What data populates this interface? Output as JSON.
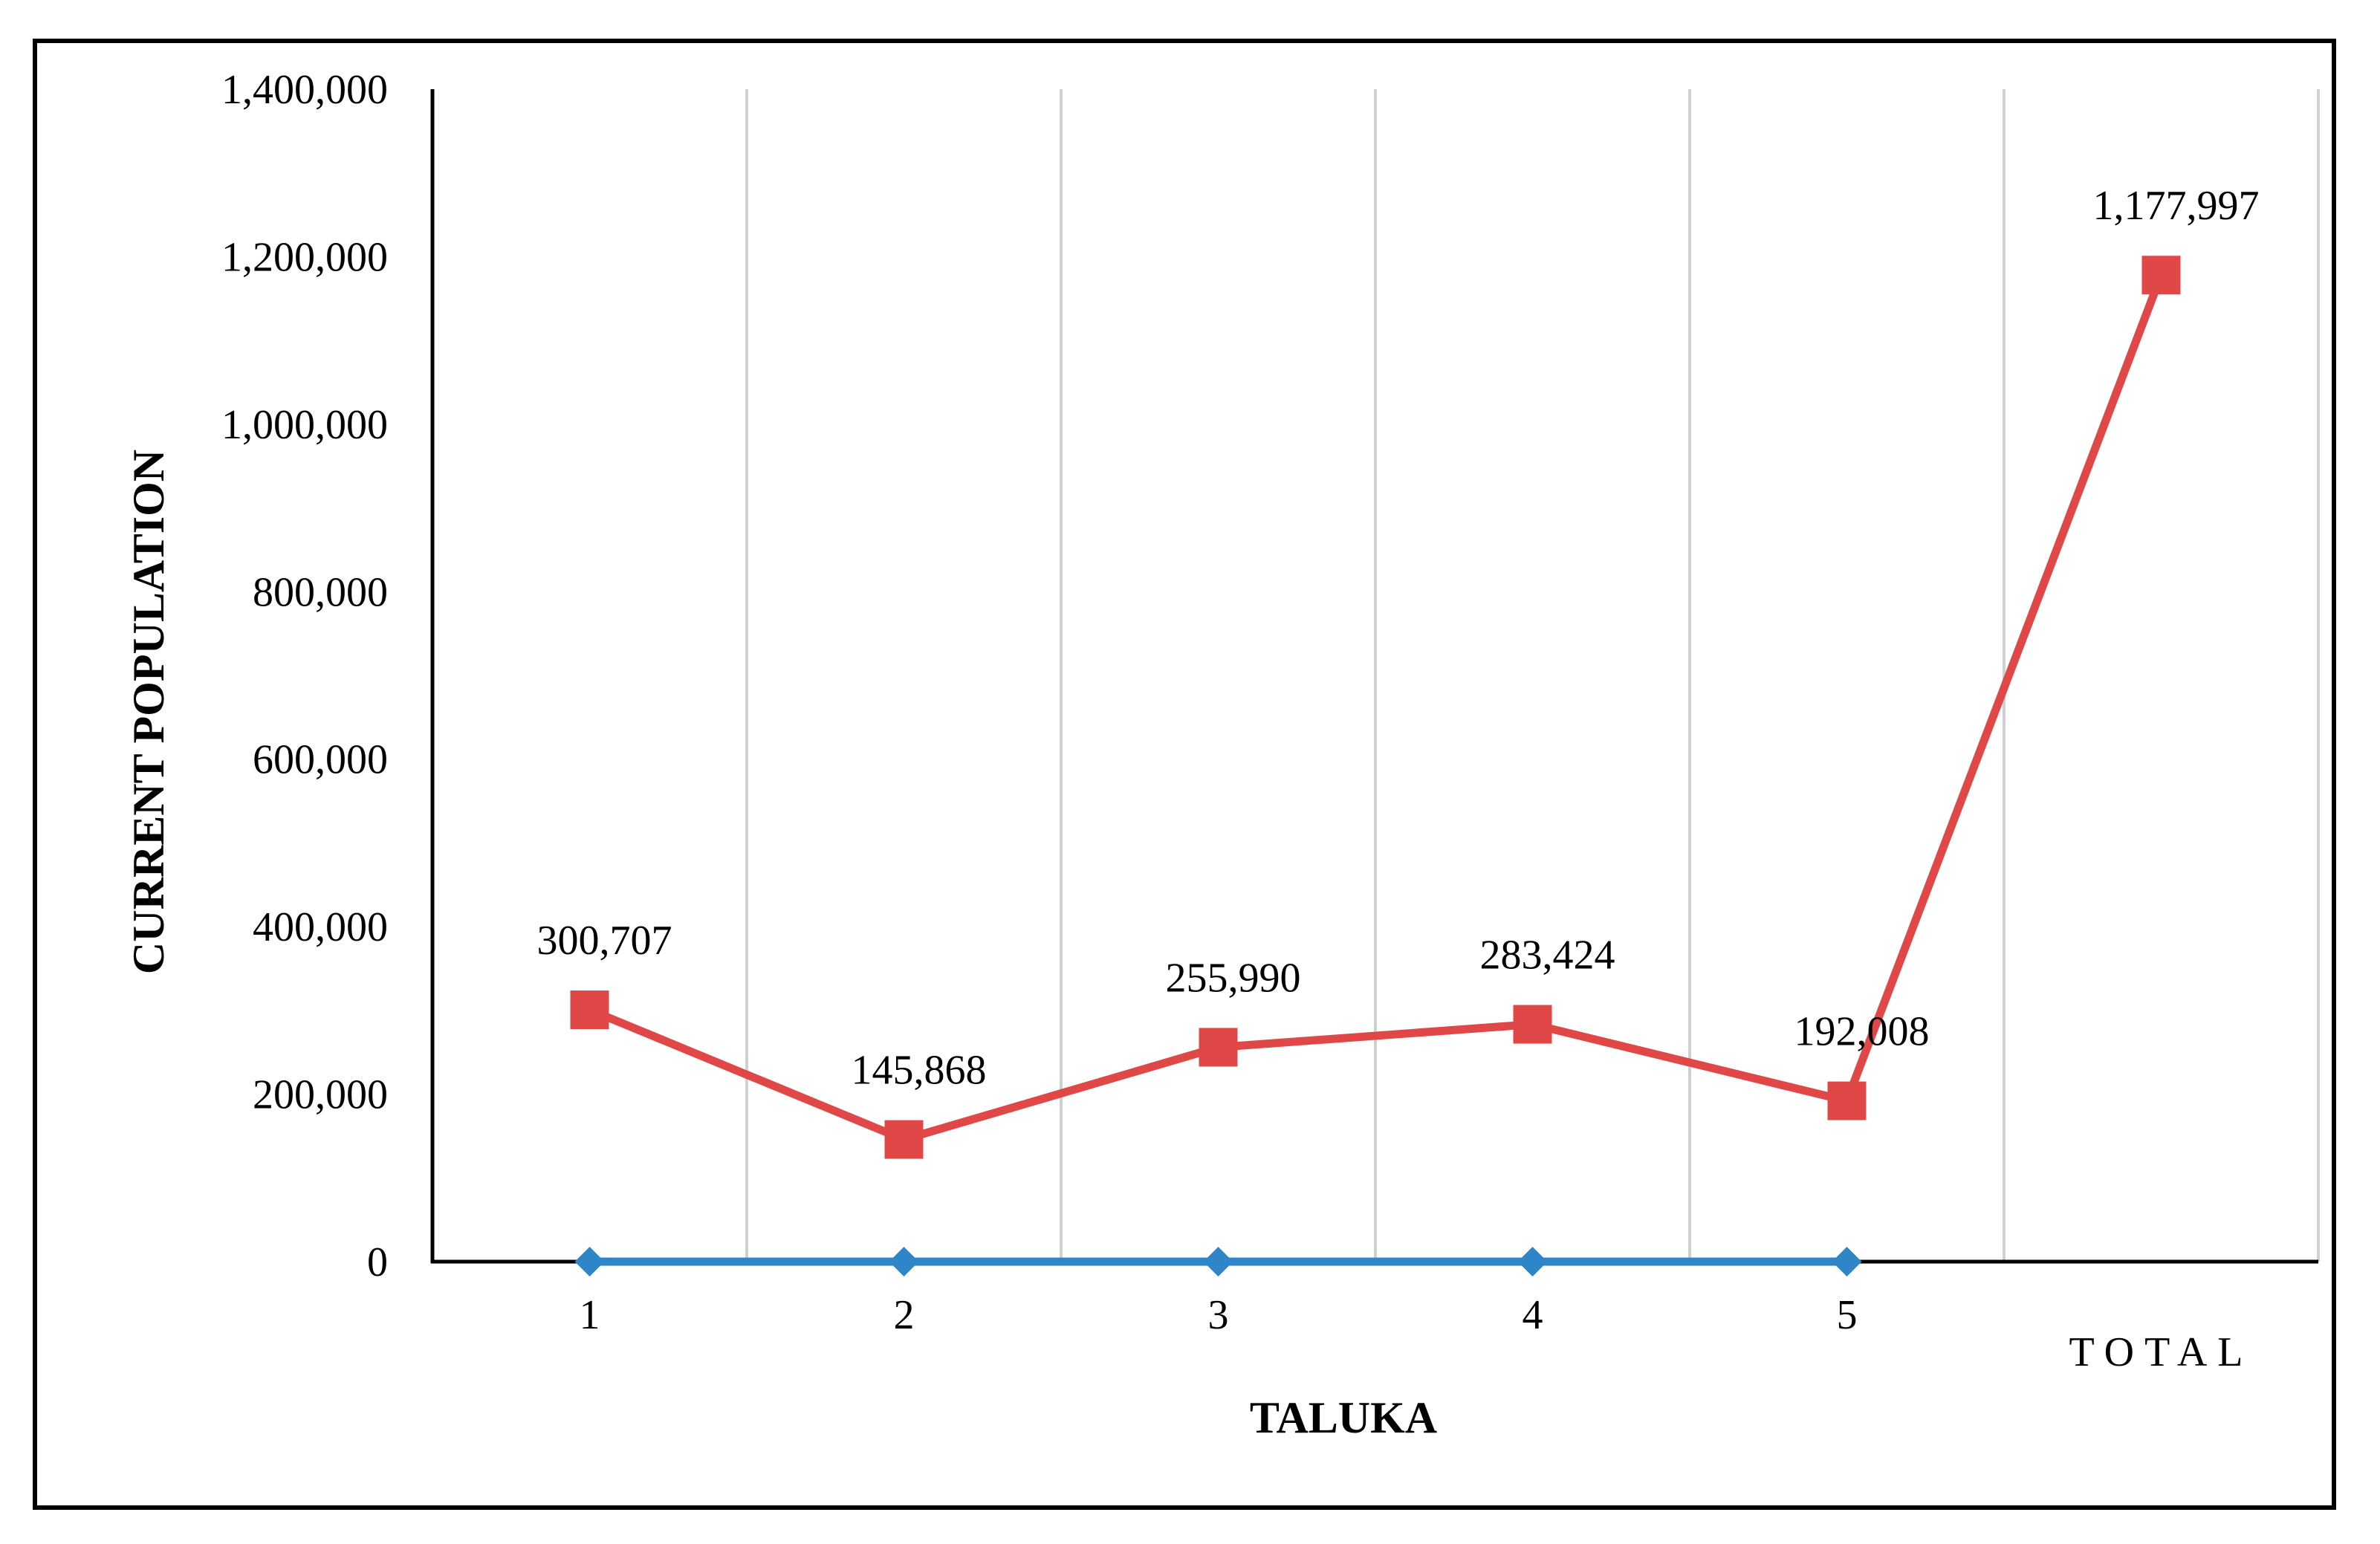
{
  "chart_data": {
    "type": "line",
    "xlabel": "TALUKA",
    "ylabel": "CURRENT POPULATION",
    "categories": [
      "1",
      "2",
      "3",
      "4",
      "5",
      "TOTAL"
    ],
    "ylim": [
      0,
      1400000
    ],
    "yticks": [
      "0",
      "200,000",
      "400,000",
      "600,000",
      "800,000",
      "1,000,000",
      "1,200,000",
      "1,400,000"
    ],
    "ytick_values": [
      0,
      200000,
      400000,
      600000,
      800000,
      1000000,
      1200000,
      1400000
    ],
    "grid": "vertical",
    "series": [
      {
        "values": [
          0,
          0,
          0,
          0,
          0,
          null
        ],
        "color": "#2e86c9",
        "marker": "diamond"
      },
      {
        "values": [
          300707,
          145868,
          255990,
          283424,
          192008,
          1177997
        ],
        "data_labels": [
          "300,707",
          "145,868",
          "255,990",
          "283,424",
          "192,008",
          "1,177,997"
        ],
        "color": "#e04848",
        "marker": "square"
      }
    ]
  }
}
